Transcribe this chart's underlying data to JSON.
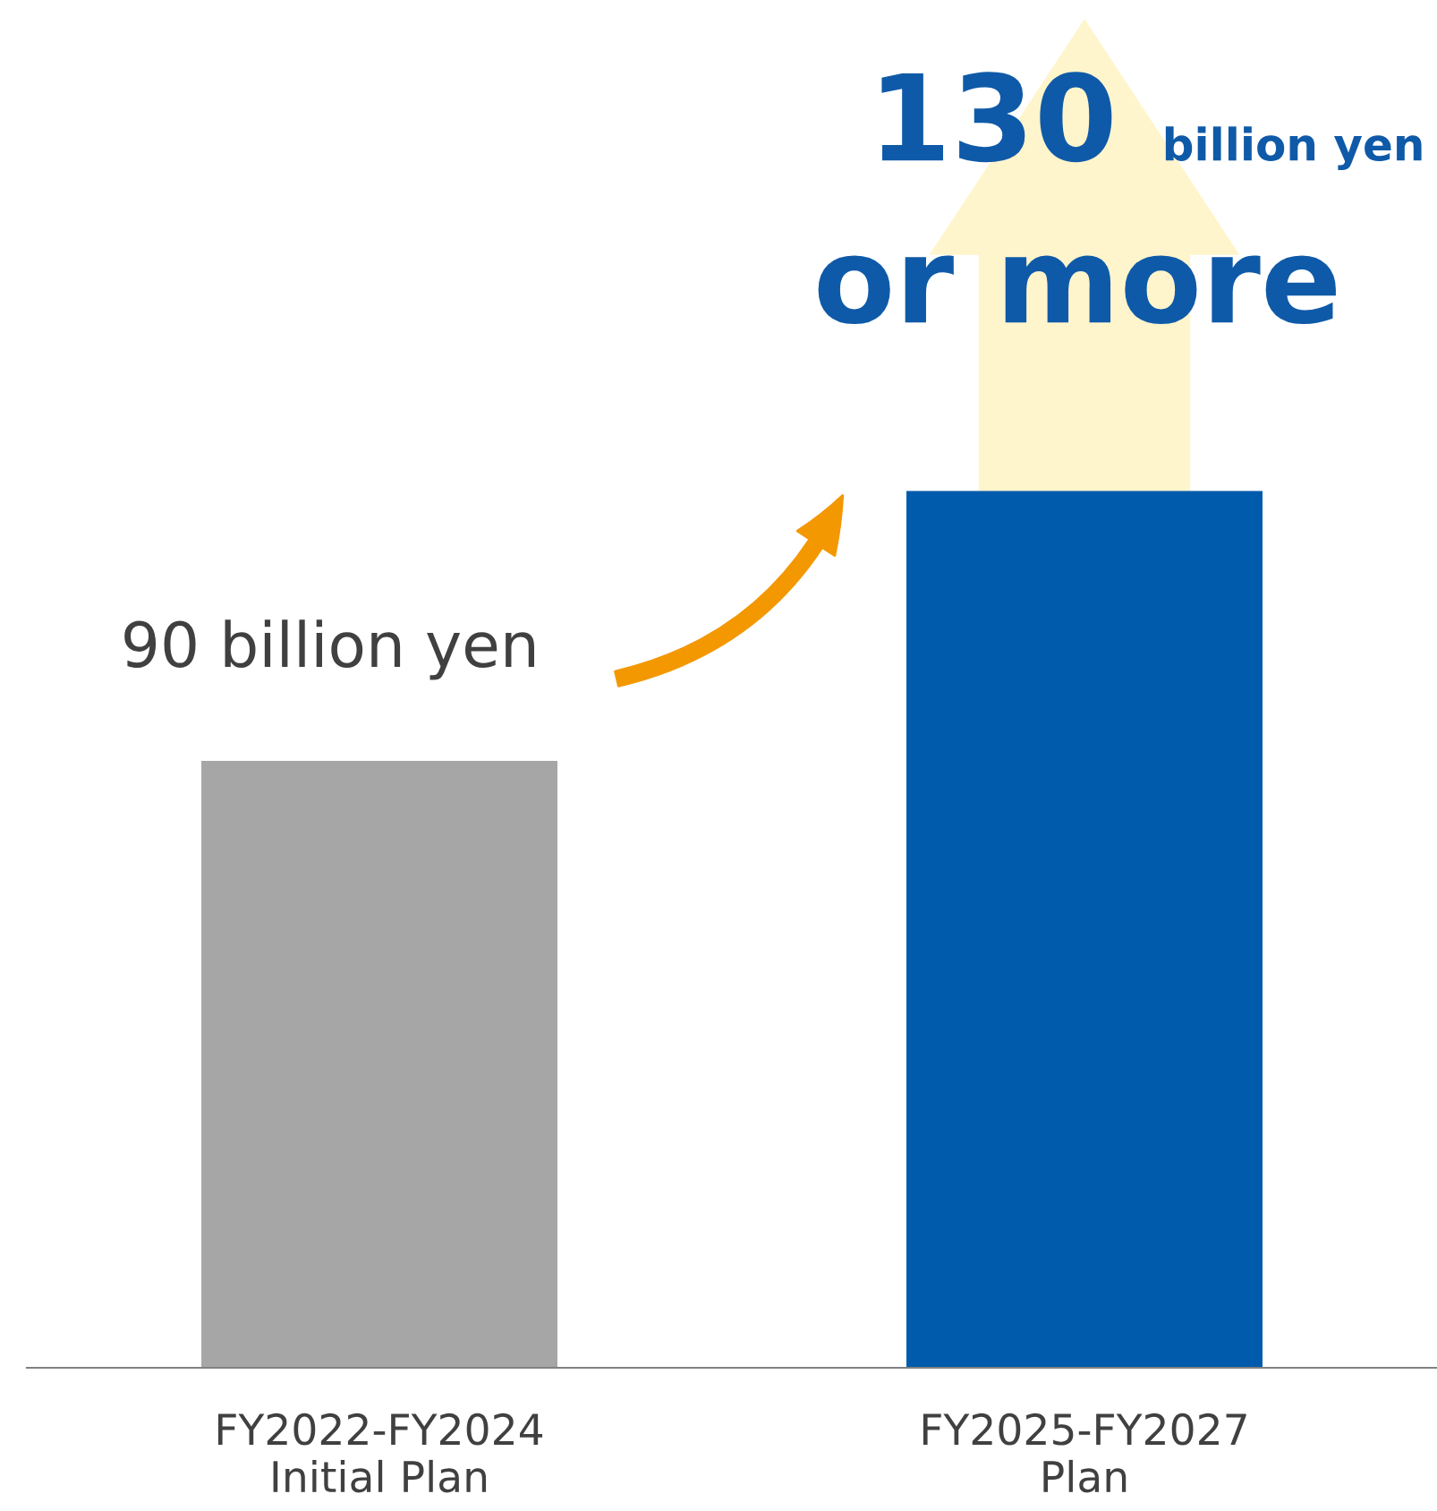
{
  "chart_data": {
    "type": "bar",
    "categories": [
      "FY2022-FY2024\nInitial Plan",
      "FY2025-FY2027\nPlan"
    ],
    "values": [
      90,
      130
    ],
    "colors": [
      "#a6a6a6",
      "#005bac"
    ],
    "value_labels": [
      "90 billion yen",
      "130 billion yen or more"
    ],
    "tick_labels": "x",
    "grid": false,
    "legend": false
  }
}
